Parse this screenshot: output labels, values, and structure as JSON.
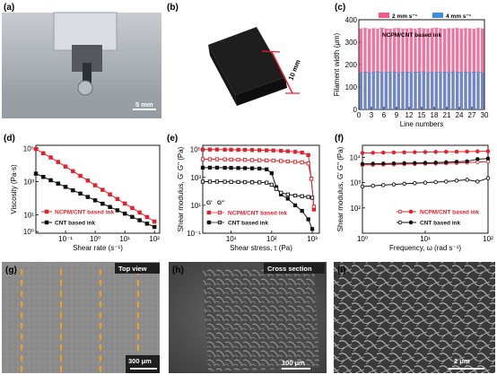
{
  "panels": {
    "a": {
      "label": "(a)",
      "scale_bar": "5 mm"
    },
    "b": {
      "label": "(b)",
      "dimension": "10 mm"
    },
    "g": {
      "label": "(g)",
      "view": "Top view",
      "scale_bar": "300 μm"
    },
    "h": {
      "label": "(h)",
      "view": "Cross section",
      "scale_bar": "100 μm"
    },
    "i": {
      "label": "(i)",
      "scale_bar": "2 μm"
    }
  },
  "colors": {
    "ncpm": "#e3202b",
    "cnt": "#111111",
    "pink": "#f05a8c",
    "blue": "#3f8fd6",
    "guide": "#f0a020"
  },
  "chart_data": [
    {
      "id": "c",
      "label": "(c)",
      "type": "bar",
      "annotation": "NCPM/CNT based ink",
      "xlabel": "Line numbers",
      "ylabel": "Filament width (μm)",
      "xlim": [
        0,
        30
      ],
      "ylim": [
        0,
        400
      ],
      "xticks": [
        0,
        3,
        6,
        9,
        12,
        15,
        18,
        21,
        24,
        27,
        30
      ],
      "yticks": [
        0,
        100,
        200,
        300,
        400
      ],
      "legend_position": "top-right",
      "series": [
        {
          "name": "2 mm s⁻¹",
          "color": "#f05a8c",
          "values": [
            360,
            362,
            358,
            361,
            359,
            363,
            360,
            358,
            361,
            362,
            359,
            360,
            361,
            358,
            362,
            360,
            359,
            361,
            363,
            360,
            358,
            361,
            360,
            362,
            359,
            361,
            360,
            358,
            362,
            360
          ]
        },
        {
          "name": "4 mm s⁻¹",
          "color": "#3f8fd6",
          "values": [
            165,
            168,
            163,
            166,
            170,
            164,
            167,
            165,
            169,
            163,
            166,
            168,
            164,
            167,
            165,
            170,
            163,
            166,
            168,
            165,
            167,
            164,
            169,
            166,
            165,
            168,
            163,
            167,
            166,
            165
          ]
        }
      ]
    },
    {
      "id": "d",
      "label": "(d)",
      "type": "line",
      "xlabel": "Shear rate (s⁻¹)",
      "ylabel": "Viscosity (Pa·s)",
      "xscale": "log",
      "yscale": "log",
      "xlim": [
        0.01,
        150
      ],
      "ylim": [
        0.8,
        150000
      ],
      "xticks": [
        {
          "v": 0.1,
          "t": "10⁻¹"
        },
        {
          "v": 1,
          "t": "10⁰"
        },
        {
          "v": 10,
          "t": "10¹"
        },
        {
          "v": 100,
          "t": "10²"
        }
      ],
      "yticks": [
        {
          "v": 1,
          "t": "10⁰"
        },
        {
          "v": 10,
          "t": "10¹"
        },
        {
          "v": 1000,
          "t": "10³"
        },
        {
          "v": 100000,
          "t": "10⁵"
        }
      ],
      "legend_position": "bottom-left",
      "series": [
        {
          "name": "NCPM/CNT based ink",
          "color": "#e3202b",
          "marker": "square-filled",
          "x": [
            0.01,
            0.0178,
            0.0316,
            0.0562,
            0.1,
            0.178,
            0.316,
            0.562,
            1,
            1.78,
            3.16,
            5.62,
            10,
            17.8,
            31.6,
            56.2,
            100
          ],
          "y": [
            90000,
            50000,
            28000,
            15000,
            8000,
            4200,
            2200,
            1150,
            600,
            320,
            170,
            90,
            48,
            26,
            14,
            7.5,
            4
          ]
        },
        {
          "name": "CNT based ink",
          "color": "#111111",
          "marker": "square-filled",
          "x": [
            0.01,
            0.0178,
            0.0316,
            0.0562,
            0.1,
            0.178,
            0.316,
            0.562,
            1,
            1.78,
            3.16,
            5.62,
            10,
            17.8,
            31.6,
            56.2,
            100
          ],
          "y": [
            3000,
            1900,
            1200,
            760,
            480,
            300,
            190,
            120,
            75,
            47,
            30,
            19,
            12,
            7.6,
            4.8,
            3,
            1.9
          ]
        }
      ]
    },
    {
      "id": "e",
      "label": "(e)",
      "type": "line",
      "xlabel": "Shear stress, τ (Pa)",
      "ylabel": "Shear modulus, G' G\" (Pa)",
      "xscale": "log",
      "yscale": "log",
      "xlim": [
        2,
        1500
      ],
      "ylim": [
        0.1,
        200000
      ],
      "xticks": [
        {
          "v": 10,
          "t": "10¹"
        },
        {
          "v": 100,
          "t": "10²"
        },
        {
          "v": 1000,
          "t": "10³"
        }
      ],
      "yticks": [
        {
          "v": 0.1,
          "t": "10⁻¹"
        },
        {
          "v": 10,
          "t": "10¹"
        },
        {
          "v": 1000,
          "t": "10³"
        },
        {
          "v": 100000,
          "t": "10⁵"
        }
      ],
      "legend_title_gp": "G'",
      "legend_title_gpp": "G\"",
      "legend_position": "bottom-left",
      "series": [
        {
          "name": "NCPM/CNT based ink",
          "role": "G'",
          "color": "#e3202b",
          "marker": "square-filled",
          "x": [
            2,
            3,
            4.5,
            7,
            10,
            15,
            22,
            33,
            50,
            75,
            110,
            170,
            250,
            380,
            560,
            800,
            950,
            1100
          ],
          "y": [
            100000,
            100000,
            100000,
            98000,
            97000,
            95000,
            94000,
            92000,
            90000,
            88000,
            85000,
            80000,
            75000,
            68000,
            60000,
            40000,
            800,
            5
          ]
        },
        {
          "name": "NCPM/CNT based ink",
          "role": "G\"",
          "color": "#e3202b",
          "marker": "square-open",
          "x": [
            2,
            3,
            4.5,
            7,
            10,
            15,
            22,
            33,
            50,
            75,
            110,
            170,
            250,
            380,
            560,
            800,
            950,
            1100
          ],
          "y": [
            20000,
            20000,
            20000,
            19500,
            19000,
            18500,
            18000,
            17500,
            17000,
            16500,
            16000,
            15000,
            14000,
            13000,
            12000,
            10000,
            800,
            8
          ]
        },
        {
          "name": "CNT based ink",
          "role": "G'",
          "color": "#111111",
          "marker": "square-filled",
          "x": [
            2,
            3,
            4.5,
            7,
            10,
            15,
            22,
            33,
            50,
            75,
            100,
            130,
            170,
            250,
            380,
            560,
            800,
            1000
          ],
          "y": [
            5000,
            5000,
            5000,
            4900,
            4800,
            4700,
            4600,
            4500,
            4300,
            3800,
            2000,
            200,
            60,
            30,
            10,
            4,
            1,
            0.2
          ]
        },
        {
          "name": "CNT based ink",
          "role": "G\"",
          "color": "#111111",
          "marker": "square-open",
          "x": [
            2,
            3,
            4.5,
            7,
            10,
            15,
            22,
            33,
            50,
            75,
            100,
            130,
            170,
            250,
            380,
            560,
            800,
            1000
          ],
          "y": [
            500,
            500,
            500,
            490,
            480,
            470,
            460,
            450,
            440,
            420,
            300,
            150,
            80,
            60,
            50,
            45,
            40,
            35
          ]
        }
      ]
    },
    {
      "id": "f",
      "label": "(f)",
      "type": "line",
      "xlabel": "Frequency, ω (rad s⁻¹)",
      "ylabel": "Shear modulus, G' G\" (Pa)",
      "xscale": "log",
      "yscale": "log",
      "xlim": [
        1,
        100
      ],
      "ylim": [
        10,
        30000
      ],
      "xticks": [
        {
          "v": 1,
          "t": "10⁰"
        },
        {
          "v": 10,
          "t": "10¹"
        },
        {
          "v": 100,
          "t": "10²"
        }
      ],
      "yticks": [
        {
          "v": 100,
          "t": "10²"
        },
        {
          "v": 1000,
          "t": "10³"
        },
        {
          "v": 10000,
          "t": "10⁴"
        }
      ],
      "legend_position": "bottom-right",
      "series": [
        {
          "name": "NCPM/CNT based ink",
          "role": "G'",
          "color": "#e3202b",
          "marker": "circle-filled",
          "x": [
            1,
            1.47,
            2.15,
            3.16,
            4.64,
            6.81,
            10,
            14.7,
            21.5,
            31.6,
            46.4,
            68.1,
            100
          ],
          "y": [
            15000,
            15200,
            15400,
            15600,
            15800,
            16000,
            16200,
            16400,
            16600,
            16800,
            17000,
            17200,
            17400
          ]
        },
        {
          "name": "NCPM/CNT based ink",
          "role": "G\"",
          "color": "#e3202b",
          "marker": "circle-open",
          "x": [
            1,
            1.47,
            2.15,
            3.16,
            4.64,
            6.81,
            10,
            14.7,
            21.5,
            31.6,
            46.4,
            68.1,
            100
          ],
          "y": [
            5000,
            5100,
            5200,
            5300,
            5400,
            5500,
            5600,
            5700,
            5800,
            6000,
            6200,
            6500,
            6800
          ]
        },
        {
          "name": "CNT based ink",
          "role": "G'",
          "color": "#111111",
          "marker": "circle-filled",
          "x": [
            1,
            1.47,
            2.15,
            3.16,
            4.64,
            6.81,
            10,
            14.7,
            21.5,
            31.6,
            46.4,
            68.1,
            100
          ],
          "y": [
            5500,
            5600,
            5700,
            5800,
            5900,
            6000,
            6100,
            6200,
            6400,
            6700,
            7000,
            8500,
            9000
          ]
        },
        {
          "name": "CNT based ink",
          "role": "G\"",
          "color": "#111111",
          "marker": "circle-open",
          "x": [
            1,
            1.47,
            2.15,
            3.16,
            4.64,
            6.81,
            10,
            14.7,
            21.5,
            31.6,
            46.4,
            68.1,
            100
          ],
          "y": [
            700,
            750,
            800,
            850,
            900,
            950,
            1000,
            1050,
            1100,
            1200,
            1300,
            1100,
            1500
          ]
        }
      ]
    }
  ]
}
